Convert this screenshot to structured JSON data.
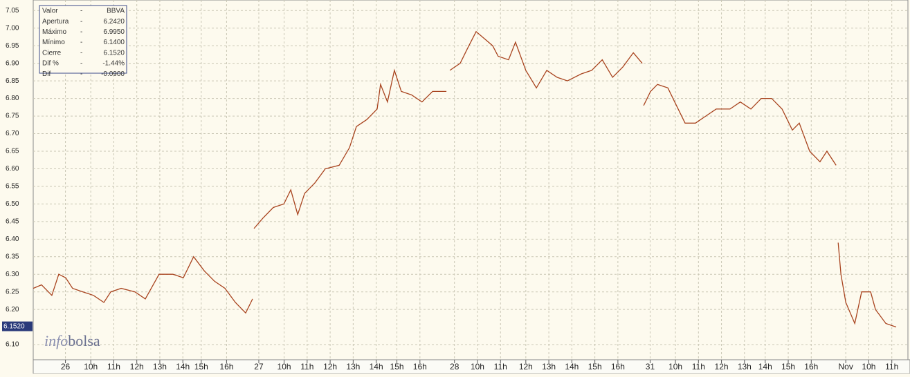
{
  "chart_data": {
    "type": "line",
    "x": [
      0,
      0.36,
      0.81,
      1.11,
      1.41,
      1.71,
      2.16,
      2.62,
      3.07,
      3.37,
      3.82,
      4.42,
      4.87,
      5.47,
      6.07,
      6.52,
      6.97,
      7.43,
      7.88,
      8.33,
      8.78,
      9.23,
      9.53,
      9.56,
      9.59,
      9.98,
      10.43,
      10.89,
      11.19,
      11.49,
      11.79,
      12.24,
      12.69,
      13.29,
      13.74,
      14.04,
      14.49,
      14.94,
      15.09,
      15.39,
      15.69,
      15.99,
      16.44,
      16.89,
      17.35,
      17.95,
      18.0,
      18.1,
      18.55,
      18.85,
      19.24,
      19.6,
      19.96,
      20.2,
      20.65,
      20.95,
      21.4,
      21.86,
      22.31,
      22.76,
      23.21,
      23.81,
      24.26,
      24.72,
      25.17,
      25.62,
      26.07,
      26.46,
      26.49,
      26.52,
      26.82,
      27.12,
      27.57,
      27.87,
      28.32,
      28.77,
      29.22,
      29.67,
      30.27,
      30.72,
      31.18,
      31.63,
      32.08,
      32.53,
      32.98,
      33.28,
      33.73,
      34.18,
      34.48,
      34.88,
      34.92,
      34.97,
      35.09,
      35.3,
      35.69,
      35.99,
      36.38,
      36.59,
      37.04,
      37.49
    ],
    "series": [
      {
        "name": "BBVA",
        "color": "#a8431e",
        "values": [
          6.26,
          6.27,
          6.24,
          6.3,
          6.29,
          6.26,
          6.25,
          6.24,
          6.22,
          6.25,
          6.26,
          6.25,
          6.23,
          6.3,
          6.3,
          6.29,
          6.35,
          6.31,
          6.28,
          6.26,
          6.22,
          6.19,
          6.23,
          null,
          6.43,
          6.46,
          6.49,
          6.5,
          6.54,
          6.47,
          6.53,
          6.56,
          6.6,
          6.61,
          6.66,
          6.72,
          6.74,
          6.77,
          6.84,
          6.79,
          6.88,
          6.82,
          6.81,
          6.79,
          6.82,
          6.82,
          null,
          6.88,
          6.9,
          6.94,
          6.99,
          6.97,
          6.95,
          6.92,
          6.91,
          6.96,
          6.88,
          6.83,
          6.88,
          6.86,
          6.85,
          6.87,
          6.88,
          6.91,
          6.86,
          6.89,
          6.93,
          6.9,
          null,
          6.78,
          6.82,
          6.84,
          6.83,
          6.79,
          6.73,
          6.73,
          6.75,
          6.77,
          6.77,
          6.79,
          6.77,
          6.8,
          6.8,
          6.77,
          6.71,
          6.73,
          6.65,
          6.62,
          6.65,
          6.61,
          null,
          6.39,
          6.3,
          6.22,
          6.16,
          6.25,
          6.25,
          6.2,
          6.16,
          6.15
        ]
      }
    ],
    "xlim": [
      0,
      38
    ],
    "xticks": [
      {
        "value": 1.4,
        "label": "26"
      },
      {
        "value": 2.5,
        "label": "10h"
      },
      {
        "value": 3.5,
        "label": "11h"
      },
      {
        "value": 4.5,
        "label": "12h"
      },
      {
        "value": 5.5,
        "label": "13h"
      },
      {
        "value": 6.5,
        "label": "14h"
      },
      {
        "value": 7.3,
        "label": "15h"
      },
      {
        "value": 8.4,
        "label": "16h"
      },
      {
        "value": 9.8,
        "label": "27"
      },
      {
        "value": 10.9,
        "label": "10h"
      },
      {
        "value": 11.9,
        "label": "11h"
      },
      {
        "value": 12.9,
        "label": "12h"
      },
      {
        "value": 13.9,
        "label": "13h"
      },
      {
        "value": 14.9,
        "label": "14h"
      },
      {
        "value": 15.8,
        "label": "15h"
      },
      {
        "value": 16.8,
        "label": "16h"
      },
      {
        "value": 18.3,
        "label": "28"
      },
      {
        "value": 19.3,
        "label": "10h"
      },
      {
        "value": 20.3,
        "label": "11h"
      },
      {
        "value": 21.4,
        "label": "12h"
      },
      {
        "value": 22.4,
        "label": "13h"
      },
      {
        "value": 23.4,
        "label": "14h"
      },
      {
        "value": 24.4,
        "label": "15h"
      },
      {
        "value": 25.4,
        "label": "16h"
      },
      {
        "value": 26.8,
        "label": "31"
      },
      {
        "value": 27.9,
        "label": "10h"
      },
      {
        "value": 28.9,
        "label": "11h"
      },
      {
        "value": 29.9,
        "label": "12h"
      },
      {
        "value": 30.9,
        "label": "13h"
      },
      {
        "value": 31.8,
        "label": "14h"
      },
      {
        "value": 32.8,
        "label": "15h"
      },
      {
        "value": 33.8,
        "label": "16h"
      },
      {
        "value": 35.3,
        "label": "Nov"
      },
      {
        "value": 36.3,
        "label": "10h"
      },
      {
        "value": 37.3,
        "label": "11h"
      }
    ],
    "ylim": [
      6.057,
      7.08
    ],
    "yticks": [
      7.05,
      {
        "value": 7.0,
        "label": "7.00"
      },
      6.95,
      {
        "value": 6.9,
        "label": "6.90"
      },
      6.85,
      {
        "value": 6.8,
        "label": "6.80"
      },
      6.75,
      {
        "value": 6.7,
        "label": "6.70"
      },
      6.65,
      {
        "value": 6.6,
        "label": "6.60"
      },
      6.55,
      {
        "value": 6.5,
        "label": "6.50"
      },
      6.45,
      {
        "value": 6.4,
        "label": "6.40"
      },
      6.35,
      {
        "value": 6.3,
        "label": "6.30"
      },
      6.25,
      {
        "value": 6.2,
        "label": "6.20"
      },
      {
        "value": 6.1,
        "label": "6.10"
      }
    ],
    "grid": true,
    "last_value": {
      "value": 6.152,
      "label": "6.1520"
    },
    "info_box": [
      [
        "Valor",
        "-",
        "BBVA"
      ],
      [
        "Apertura",
        "-",
        "6.2420"
      ],
      [
        "Máximo",
        "-",
        "6.9950"
      ],
      [
        "Mínimo",
        "-",
        "6.1400"
      ],
      [
        "Cierre",
        "-",
        "6.1520"
      ],
      [
        "Dif %",
        "-",
        "-1.44%"
      ],
      [
        "Dif",
        "-",
        "-0.0900"
      ]
    ],
    "watermark": [
      "info",
      "bolsa"
    ]
  }
}
